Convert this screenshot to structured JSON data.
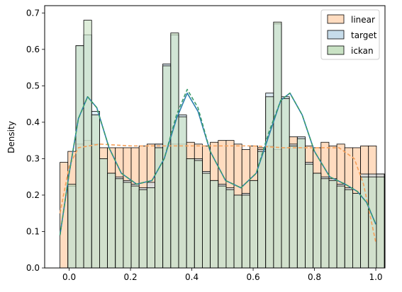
{
  "chart_data": {
    "type": "histogram",
    "xlabel": "",
    "ylabel": "Density",
    "xlim": [
      -0.08,
      1.03
    ],
    "ylim": [
      0,
      0.72
    ],
    "xticks": [
      0.0,
      0.2,
      0.4,
      0.6,
      0.8,
      1.0
    ],
    "xtick_labels": [
      "0.0",
      "0.2",
      "0.4",
      "0.6",
      "0.8",
      "1.0"
    ],
    "yticks": [
      0.0,
      0.1,
      0.2,
      0.3,
      0.4,
      0.5,
      0.6,
      0.7
    ],
    "ytick_labels": [
      "0.0",
      "0.1",
      "0.2",
      "0.3",
      "0.4",
      "0.5",
      "0.6",
      "0.7"
    ],
    "grid": false,
    "legend_position": "top-right",
    "bin_start": -0.03,
    "bin_width": 0.0258,
    "series": [
      {
        "name": "linear",
        "color": "#ffdcc0",
        "line_color": "#f5a05a",
        "line_style": "dashed",
        "values": [
          0.29,
          0.32,
          0.34,
          0.35,
          0.34,
          0.33,
          0.33,
          0.33,
          0.33,
          0.33,
          0.335,
          0.34,
          0.34,
          0.335,
          0.34,
          0.34,
          0.345,
          0.34,
          0.335,
          0.345,
          0.35,
          0.35,
          0.34,
          0.325,
          0.335,
          0.33,
          0.335,
          0.325,
          0.33,
          0.36,
          0.33,
          0.335,
          0.33,
          0.345,
          0.335,
          0.34,
          0.33,
          0.33,
          0.335,
          0.335,
          0.258,
          0.0
        ],
        "kde": [
          [
            -0.03,
            0.15
          ],
          [
            0.0,
            0.28
          ],
          [
            0.03,
            0.33
          ],
          [
            0.1,
            0.34
          ],
          [
            0.2,
            0.335
          ],
          [
            0.3,
            0.335
          ],
          [
            0.4,
            0.335
          ],
          [
            0.5,
            0.335
          ],
          [
            0.6,
            0.335
          ],
          [
            0.7,
            0.33
          ],
          [
            0.8,
            0.33
          ],
          [
            0.88,
            0.33
          ],
          [
            0.93,
            0.3
          ],
          [
            0.96,
            0.23
          ],
          [
            0.98,
            0.15
          ],
          [
            1.0,
            0.07
          ]
        ]
      },
      {
        "name": "target",
        "color": "#c7dcea",
        "line_color": "#2d7fae",
        "line_style": "solid",
        "values": [
          0.0,
          0.225,
          0.61,
          0.64,
          0.43,
          0.3,
          0.26,
          0.25,
          0.24,
          0.23,
          0.22,
          0.235,
          0.34,
          0.56,
          0.64,
          0.42,
          0.3,
          0.3,
          0.265,
          0.24,
          0.23,
          0.22,
          0.2,
          0.205,
          0.24,
          0.325,
          0.48,
          0.67,
          0.47,
          0.34,
          0.36,
          0.29,
          0.26,
          0.25,
          0.245,
          0.23,
          0.22,
          0.205,
          0.258,
          0.258,
          0.258,
          0.0
        ],
        "kde": [
          [
            -0.03,
            0.09
          ],
          [
            0.0,
            0.26
          ],
          [
            0.03,
            0.41
          ],
          [
            0.06,
            0.47
          ],
          [
            0.09,
            0.44
          ],
          [
            0.13,
            0.33
          ],
          [
            0.17,
            0.26
          ],
          [
            0.22,
            0.23
          ],
          [
            0.27,
            0.24
          ],
          [
            0.31,
            0.3
          ],
          [
            0.35,
            0.41
          ],
          [
            0.385,
            0.48
          ],
          [
            0.42,
            0.43
          ],
          [
            0.46,
            0.32
          ],
          [
            0.51,
            0.24
          ],
          [
            0.56,
            0.22
          ],
          [
            0.61,
            0.26
          ],
          [
            0.65,
            0.36
          ],
          [
            0.69,
            0.46
          ],
          [
            0.72,
            0.48
          ],
          [
            0.76,
            0.42
          ],
          [
            0.8,
            0.32
          ],
          [
            0.85,
            0.25
          ],
          [
            0.9,
            0.23
          ],
          [
            0.94,
            0.21
          ],
          [
            0.97,
            0.18
          ],
          [
            1.0,
            0.12
          ]
        ]
      },
      {
        "name": "ickan",
        "color": "#c9e2c4",
        "line_color": "#3a9b6a",
        "line_style": "dashed",
        "values": [
          0.0,
          0.23,
          0.61,
          0.68,
          0.42,
          0.3,
          0.26,
          0.245,
          0.235,
          0.225,
          0.215,
          0.22,
          0.33,
          0.555,
          0.645,
          0.415,
          0.3,
          0.295,
          0.26,
          0.24,
          0.225,
          0.215,
          0.2,
          0.2,
          0.24,
          0.32,
          0.47,
          0.675,
          0.465,
          0.335,
          0.355,
          0.285,
          0.26,
          0.245,
          0.24,
          0.225,
          0.215,
          0.205,
          0.25,
          0.25,
          0.25,
          0.0
        ],
        "kde": [
          [
            -0.03,
            0.09
          ],
          [
            0.0,
            0.26
          ],
          [
            0.03,
            0.41
          ],
          [
            0.06,
            0.47
          ],
          [
            0.09,
            0.44
          ],
          [
            0.13,
            0.33
          ],
          [
            0.17,
            0.26
          ],
          [
            0.22,
            0.23
          ],
          [
            0.27,
            0.24
          ],
          [
            0.31,
            0.3
          ],
          [
            0.35,
            0.42
          ],
          [
            0.385,
            0.49
          ],
          [
            0.42,
            0.44
          ],
          [
            0.46,
            0.32
          ],
          [
            0.51,
            0.24
          ],
          [
            0.56,
            0.22
          ],
          [
            0.61,
            0.26
          ],
          [
            0.65,
            0.37
          ],
          [
            0.69,
            0.46
          ],
          [
            0.72,
            0.48
          ],
          [
            0.76,
            0.42
          ],
          [
            0.8,
            0.32
          ],
          [
            0.85,
            0.25
          ],
          [
            0.9,
            0.23
          ],
          [
            0.94,
            0.21
          ],
          [
            0.97,
            0.18
          ],
          [
            1.0,
            0.12
          ]
        ]
      }
    ]
  }
}
